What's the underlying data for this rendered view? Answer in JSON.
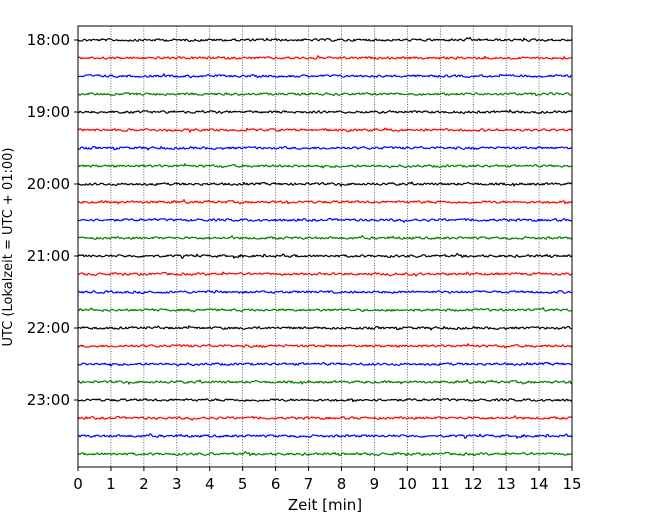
{
  "chart_data": {
    "type": "line",
    "title": "",
    "xlabel": "Zeit  [min]",
    "ylabel": "UTC (Lokalzeit = UTC + 01:00)",
    "xlim": [
      0,
      15
    ],
    "x_ticks": [
      "0",
      "1",
      "2",
      "3",
      "4",
      "5",
      "6",
      "7",
      "8",
      "9",
      "10",
      "11",
      "12",
      "13",
      "14",
      "15"
    ],
    "y_ticks": [
      "18:00",
      "19:00",
      "20:00",
      "21:00",
      "22:00",
      "23:00"
    ],
    "grid": "vertical dotted lines at each minute",
    "trace_start": "18:00",
    "trace_interval_min": 15,
    "trace_count": 24,
    "trace_colors": [
      "#000000",
      "#ff0000",
      "#0000ff",
      "#008000"
    ],
    "trace_amplitude_rel": 0.06
  }
}
